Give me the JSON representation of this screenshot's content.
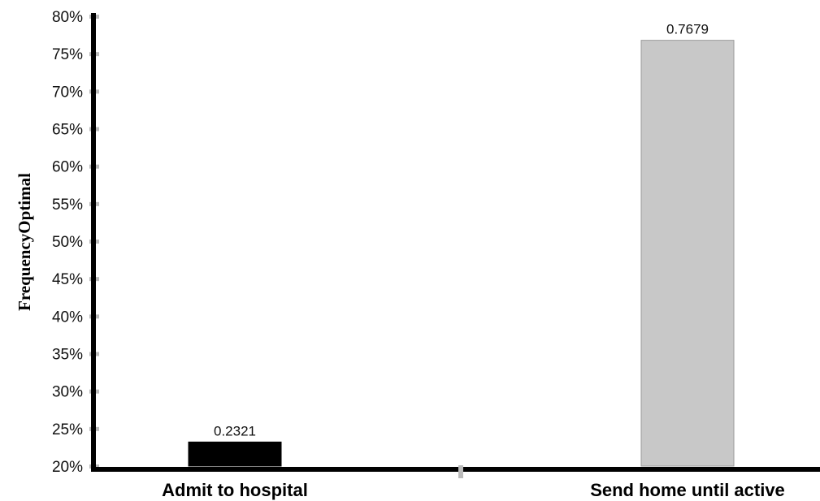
{
  "chart_data": {
    "type": "bar",
    "categories": [
      "Admit to hospital",
      "Send home until active"
    ],
    "values": [
      0.2321,
      0.7679
    ],
    "data_labels": [
      "0.2321",
      "0.7679"
    ],
    "bar_colors": [
      "#000000",
      "#c8c8c8"
    ],
    "ylabel": "FrequencyOptimal",
    "xlabel": "",
    "ylim": [
      0.2,
      0.8
    ],
    "yticks": [
      0.2,
      0.25,
      0.3,
      0.35,
      0.4,
      0.45,
      0.5,
      0.55,
      0.6,
      0.65,
      0.7,
      0.75,
      0.8
    ],
    "ytick_labels": [
      "20%",
      "25%",
      "30%",
      "35%",
      "40%",
      "45%",
      "50%",
      "55%",
      "60%",
      "65%",
      "70%",
      "75%",
      "80%"
    ],
    "grid": false,
    "legend": "none"
  }
}
